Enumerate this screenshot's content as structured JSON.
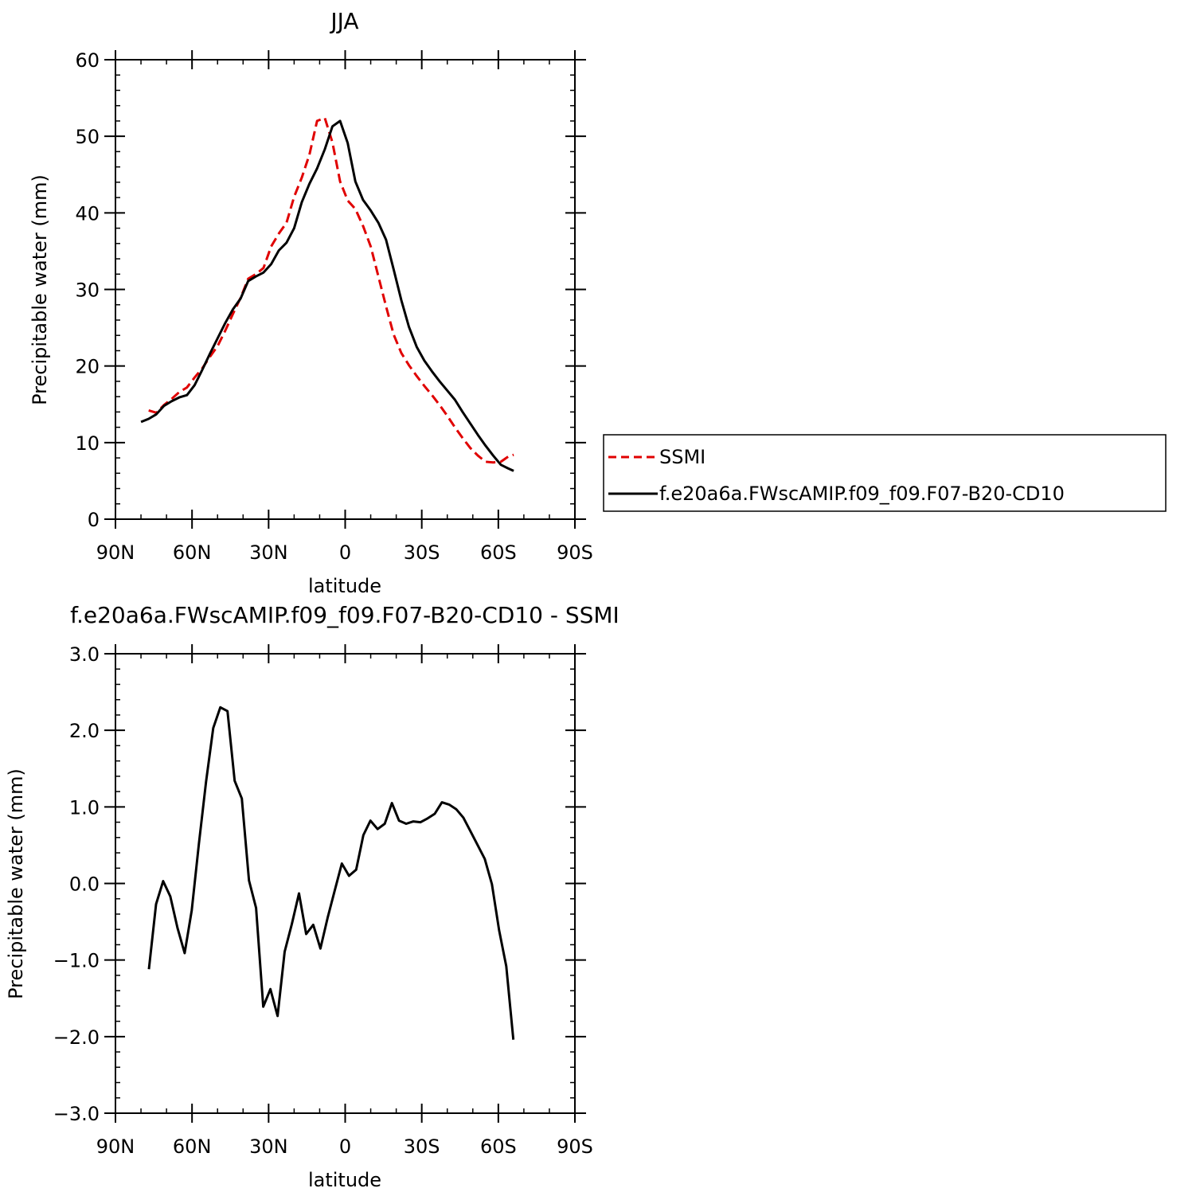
{
  "chart_data": [
    {
      "type": "line",
      "title": "JJA",
      "xlabel": "latitude",
      "ylabel": "Precipitable water (mm)",
      "xlim": [
        -90,
        90
      ],
      "ylim": [
        0,
        60
      ],
      "x_ticks": [
        {
          "value": -90,
          "label": "90N"
        },
        {
          "value": -60,
          "label": "60N"
        },
        {
          "value": -30,
          "label": "30N"
        },
        {
          "value": 0,
          "label": "0"
        },
        {
          "value": 30,
          "label": "30S"
        },
        {
          "value": 60,
          "label": "60S"
        },
        {
          "value": 90,
          "label": "90S"
        }
      ],
      "y_ticks": [
        {
          "value": 0,
          "label": "0"
        },
        {
          "value": 10,
          "label": "10"
        },
        {
          "value": 20,
          "label": "20"
        },
        {
          "value": 30,
          "label": "30"
        },
        {
          "value": 40,
          "label": "40"
        },
        {
          "value": 50,
          "label": "50"
        },
        {
          "value": 60,
          "label": "60"
        }
      ],
      "legend": {
        "position": "right"
      },
      "series": [
        {
          "name": "SSMI",
          "color": "#e00000",
          "style": "dashed",
          "x": [
            -77,
            -74,
            -71,
            -68,
            -65,
            -62,
            -59,
            -56,
            -53,
            -50,
            -47,
            -44,
            -41,
            -38,
            -35,
            -32,
            -29,
            -26,
            -23,
            -20,
            -17,
            -14,
            -11,
            -8,
            -5,
            -2,
            1,
            4,
            7,
            10,
            13,
            16,
            19,
            22,
            25,
            28,
            31,
            34,
            37,
            40,
            43,
            46,
            49,
            52,
            55,
            58,
            61,
            64,
            66
          ],
          "y": [
            14.2,
            13.9,
            14.9,
            15.7,
            16.6,
            17.2,
            18.5,
            19.7,
            21.2,
            22.6,
            24.6,
            26.8,
            28.9,
            31.4,
            32.0,
            32.8,
            35.6,
            37.3,
            38.7,
            42.1,
            44.6,
            47.6,
            52.0,
            52.4,
            49.2,
            44.1,
            41.6,
            40.5,
            38.3,
            35.6,
            31.7,
            27.8,
            24.1,
            21.7,
            20.1,
            18.7,
            17.4,
            16.2,
            14.9,
            13.5,
            12.0,
            10.6,
            9.3,
            8.3,
            7.5,
            7.4,
            7.5,
            8.2,
            8.4
          ]
        },
        {
          "name": "f.e20a6a.FWscAMIP.f09_f09.F07-B20-CD10",
          "color": "#000000",
          "style": "solid",
          "x": [
            -80,
            -77,
            -74,
            -71,
            -68,
            -65,
            -62,
            -59,
            -56,
            -53,
            -50,
            -47,
            -44,
            -41,
            -38,
            -35,
            -32,
            -29,
            -26,
            -23,
            -20,
            -17,
            -14,
            -11,
            -8,
            -5,
            -2,
            1,
            4,
            7,
            10,
            13,
            16,
            19,
            22,
            25,
            28,
            31,
            34,
            37,
            40,
            43,
            46,
            49,
            52,
            55,
            58,
            61,
            64,
            66
          ],
          "y": [
            12.7,
            13.1,
            13.7,
            14.8,
            15.4,
            15.9,
            16.2,
            17.5,
            19.5,
            21.6,
            23.6,
            25.6,
            27.4,
            28.8,
            31.1,
            31.7,
            32.2,
            33.3,
            35.1,
            36.1,
            38.0,
            41.4,
            43.8,
            45.8,
            48.3,
            51.3,
            52.0,
            49.1,
            44.1,
            41.7,
            40.3,
            38.7,
            36.5,
            32.6,
            28.6,
            25.1,
            22.5,
            20.7,
            19.3,
            18.0,
            16.8,
            15.6,
            14.0,
            12.5,
            11.0,
            9.6,
            8.3,
            7.1,
            6.6,
            6.3
          ]
        }
      ]
    },
    {
      "type": "line",
      "title": "f.e20a6a.FWscAMIP.f09_f09.F07-B20-CD10 - SSMI",
      "xlabel": "latitude",
      "ylabel": "Precipitable water (mm)",
      "xlim": [
        -90,
        90
      ],
      "ylim": [
        -3.0,
        3.0
      ],
      "x_ticks": [
        {
          "value": -90,
          "label": "90N"
        },
        {
          "value": -60,
          "label": "60N"
        },
        {
          "value": -30,
          "label": "30N"
        },
        {
          "value": 0,
          "label": "0"
        },
        {
          "value": 30,
          "label": "30S"
        },
        {
          "value": 60,
          "label": "60S"
        },
        {
          "value": 90,
          "label": "90S"
        }
      ],
      "y_ticks": [
        {
          "value": -3,
          "label": "−3.0"
        },
        {
          "value": -2,
          "label": "−2.0"
        },
        {
          "value": -1,
          "label": "−1.0"
        },
        {
          "value": 0,
          "label": "0.0"
        },
        {
          "value": 1,
          "label": "1.0"
        },
        {
          "value": 2,
          "label": "2.0"
        },
        {
          "value": 3,
          "label": "3.0"
        }
      ],
      "series": [
        {
          "color": "#000000",
          "style": "solid",
          "x": [
            -76.9,
            -74.1,
            -71.3,
            -68.5,
            -65.7,
            -62.9,
            -60.1,
            -57.3,
            -54.5,
            -51.7,
            -48.9,
            -46.1,
            -43.3,
            -40.5,
            -37.7,
            -34.9,
            -32.1,
            -29.3,
            -26.5,
            -23.7,
            -20.9,
            -18.1,
            -15.3,
            -12.5,
            -9.7,
            -6.9,
            -4.1,
            -1.3,
            1.5,
            4.3,
            7.1,
            9.9,
            12.7,
            15.5,
            18.3,
            21.1,
            23.9,
            26.7,
            29.5,
            32.3,
            35.1,
            37.9,
            40.7,
            43.5,
            46.3,
            49.1,
            51.9,
            54.7,
            57.5,
            60.3,
            63.1,
            65.9
          ],
          "y": [
            -1.12,
            -0.27,
            0.03,
            -0.17,
            -0.58,
            -0.91,
            -0.35,
            0.52,
            1.33,
            2.03,
            2.3,
            2.25,
            1.34,
            1.11,
            0.04,
            -0.32,
            -1.61,
            -1.38,
            -1.73,
            -0.89,
            -0.53,
            -0.13,
            -0.66,
            -0.54,
            -0.85,
            -0.45,
            -0.09,
            0.26,
            0.1,
            0.18,
            0.63,
            0.82,
            0.71,
            0.78,
            1.05,
            0.82,
            0.78,
            0.81,
            0.8,
            0.85,
            0.91,
            1.06,
            1.03,
            0.97,
            0.86,
            0.68,
            0.5,
            0.32,
            -0.01,
            -0.61,
            -1.08,
            -2.04
          ]
        }
      ]
    }
  ]
}
